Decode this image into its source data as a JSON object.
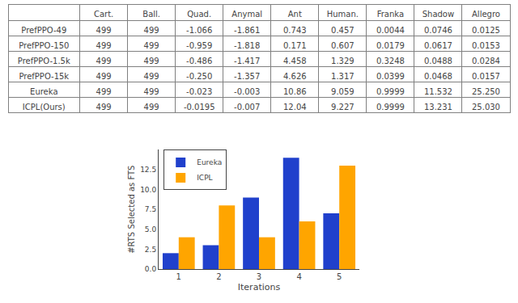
{
  "chart_data": [
    {
      "type": "table",
      "columns": [
        "Cart.",
        "Ball.",
        "Quad.",
        "Anymal",
        "Ant",
        "Human.",
        "Franka",
        "Shadow",
        "Allegro"
      ],
      "rows": [
        {
          "name": "PrefPPO-49",
          "values": [
            "499",
            "499",
            "-1.066",
            "-1.861",
            "0.743",
            "0.457",
            "0.0044",
            "0.0746",
            "0.0125"
          ]
        },
        {
          "name": "PrefPPO-150",
          "values": [
            "499",
            "499",
            "-0.959",
            "-1.818",
            "0.171",
            "0.607",
            "0.0179",
            "0.0617",
            "0.0153"
          ]
        },
        {
          "name": "PrefPPO-1.5k",
          "values": [
            "499",
            "499",
            "-0.486",
            "-1.417",
            "4.458",
            "1.329",
            "0.3248",
            "0.0488",
            "0.0284"
          ]
        },
        {
          "name": "PrefPPO-15k",
          "values": [
            "499",
            "499",
            "-0.250",
            "-1.357",
            "4.626",
            "1.317",
            "0.0399",
            "0.0468",
            "0.0157"
          ]
        },
        {
          "name": "Eureka",
          "values": [
            "499",
            "499",
            "-0.023",
            "-0.003",
            "10.86",
            "9.059",
            "0.9999",
            "11.532",
            "25.250"
          ]
        },
        {
          "name": "ICPL(Ours)",
          "values": [
            "499",
            "499",
            "-0.0195",
            "-0.007",
            "12.04",
            "9.227",
            "0.9999",
            "13.231",
            "25.030"
          ]
        }
      ]
    },
    {
      "type": "bar",
      "xlabel": "Iterations",
      "ylabel": "#RTS Selected as FTS",
      "categories": [
        "1",
        "2",
        "3",
        "4",
        "5"
      ],
      "series": [
        {
          "name": "Eureka",
          "color": "#2040cc",
          "values": [
            2,
            3,
            9,
            14,
            7
          ]
        },
        {
          "name": "ICPL",
          "color": "#FFA500",
          "values": [
            4,
            8,
            4,
            6,
            13
          ]
        }
      ],
      "ylim": [
        0,
        15
      ],
      "yticks": [
        {
          "value": 0,
          "label": "0.0"
        },
        2.5,
        {
          "value": 5,
          "label": "5.0"
        },
        7.5,
        {
          "value": 10,
          "label": "10.0"
        },
        12.5
      ],
      "grid": false,
      "legend": "upper left"
    }
  ]
}
